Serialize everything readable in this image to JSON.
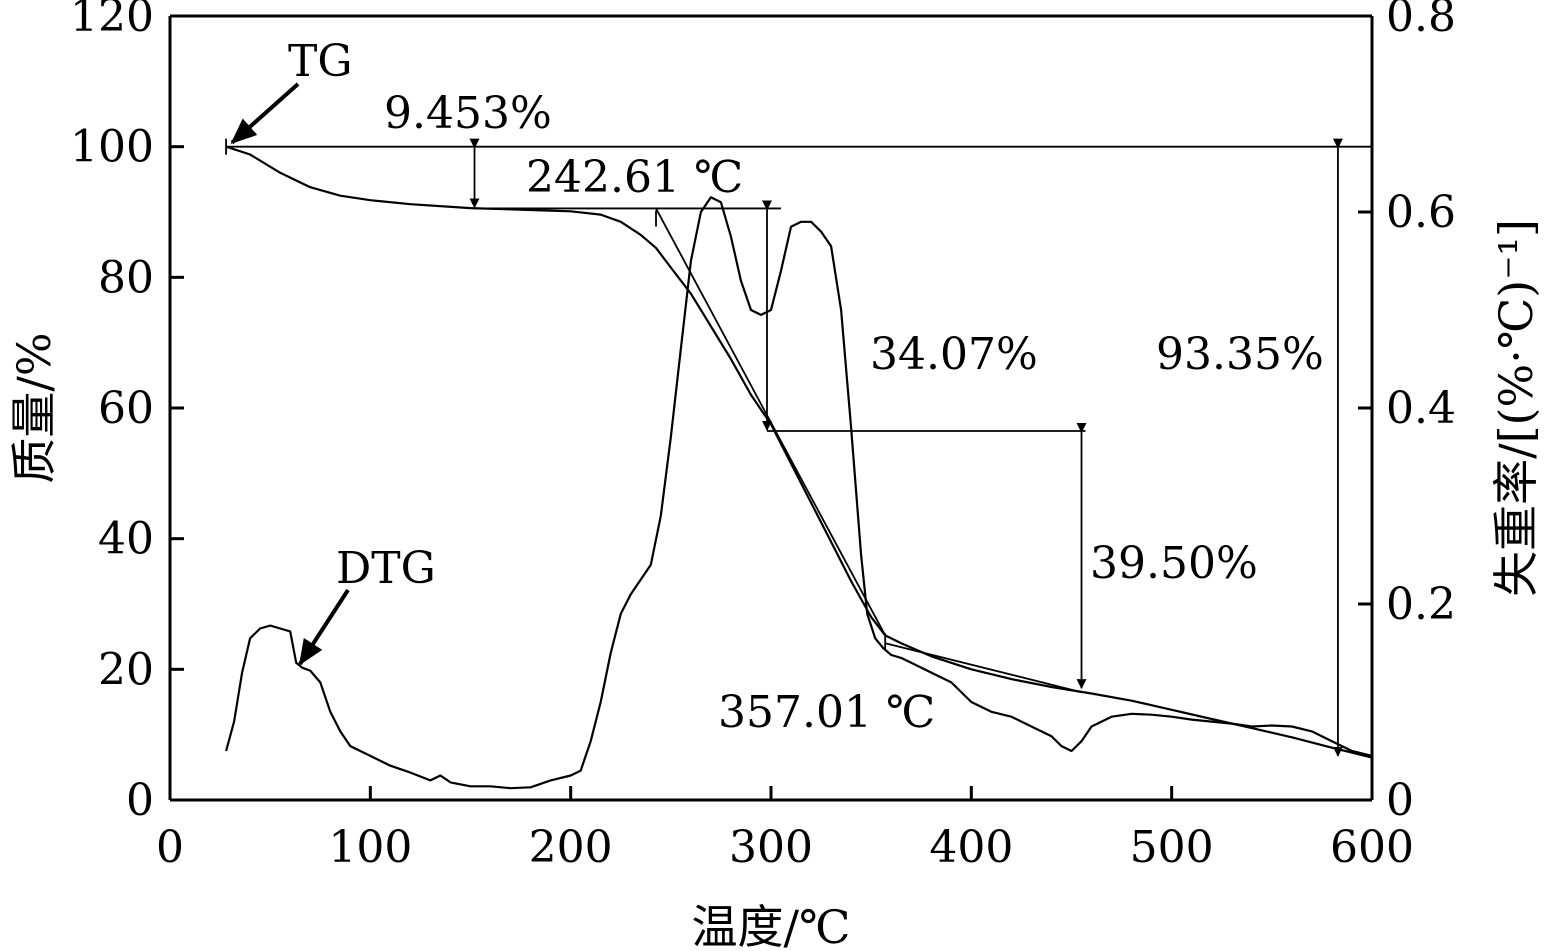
{
  "chart_data": {
    "type": "line",
    "xlabel": "温度/℃",
    "ylabel_left": "质量/%",
    "ylabel_right": "失重率/[(%·℃)⁻¹]",
    "xlim": [
      0,
      600
    ],
    "ylim_left": [
      0,
      120
    ],
    "ylim_right": [
      0,
      0.8
    ],
    "x_ticks": [
      "0",
      "100",
      "200",
      "300",
      "400",
      "500",
      "600"
    ],
    "y_left_ticks": [
      "0",
      "20",
      "40",
      "60",
      "80",
      "100",
      "120"
    ],
    "y_right_ticks": [
      "0",
      "0.2",
      "0.4",
      "0.6",
      "0.8"
    ],
    "grid": false,
    "series": [
      {
        "name": "TG",
        "axis": "left",
        "x": [
          28,
          40,
          55,
          70,
          85,
          100,
          120,
          150,
          180,
          200,
          215,
          225,
          235,
          242.6,
          250,
          260,
          270,
          280,
          290,
          300,
          310,
          320,
          330,
          340,
          350,
          357,
          365,
          380,
          400,
          420,
          440,
          460,
          480,
          500,
          520,
          540,
          560,
          580,
          600
        ],
        "values": [
          100,
          98.8,
          96,
          93.8,
          92.5,
          91.8,
          91.2,
          90.6,
          90.3,
          90.1,
          89.6,
          88.5,
          86.5,
          84.5,
          81.5,
          77.5,
          72.5,
          67.5,
          62,
          57.5,
          51.5,
          45.5,
          39.5,
          33.5,
          28,
          25.2,
          24,
          22,
          20,
          18.5,
          17.3,
          16.3,
          15.2,
          13.8,
          12.4,
          11,
          9.6,
          8,
          6.5
        ]
      },
      {
        "name": "DTG",
        "axis": "right",
        "x": [
          28,
          32,
          36,
          40,
          45,
          50,
          55,
          60,
          63,
          66,
          70,
          75,
          80,
          85,
          90,
          100,
          110,
          120,
          130,
          135,
          140,
          150,
          160,
          170,
          180,
          190,
          200,
          205,
          210,
          215,
          220,
          225,
          230,
          240,
          245,
          250,
          255,
          260,
          265,
          270,
          275,
          280,
          285,
          290,
          295,
          300,
          305,
          310,
          315,
          320,
          325,
          330,
          335,
          340,
          345,
          348,
          352,
          356,
          360,
          365,
          370,
          380,
          390,
          400,
          410,
          420,
          430,
          440,
          445,
          450,
          455,
          460,
          470,
          480,
          490,
          500,
          510,
          520,
          530,
          540,
          550,
          560,
          570,
          580,
          590,
          600
        ],
        "values": [
          0.05,
          0.08,
          0.13,
          0.165,
          0.175,
          0.178,
          0.175,
          0.172,
          0.14,
          0.135,
          0.132,
          0.12,
          0.09,
          0.07,
          0.055,
          0.045,
          0.035,
          0.028,
          0.02,
          0.025,
          0.018,
          0.014,
          0.014,
          0.012,
          0.013,
          0.02,
          0.025,
          0.03,
          0.06,
          0.1,
          0.15,
          0.19,
          0.21,
          0.24,
          0.29,
          0.37,
          0.46,
          0.55,
          0.6,
          0.615,
          0.61,
          0.575,
          0.53,
          0.5,
          0.495,
          0.5,
          0.54,
          0.585,
          0.59,
          0.59,
          0.58,
          0.565,
          0.5,
          0.38,
          0.25,
          0.19,
          0.165,
          0.155,
          0.148,
          0.145,
          0.14,
          0.13,
          0.12,
          0.1,
          0.09,
          0.085,
          0.075,
          0.065,
          0.055,
          0.05,
          0.06,
          0.075,
          0.085,
          0.088,
          0.087,
          0.085,
          0.082,
          0.08,
          0.078,
          0.075,
          0.076,
          0.075,
          0.07,
          0.06,
          0.05,
          0.045
        ]
      }
    ],
    "annotations": [
      {
        "text": "TG"
      },
      {
        "text": "DTG"
      },
      {
        "text": "9.453%"
      },
      {
        "text": "242.61 ℃"
      },
      {
        "text": "34.07%"
      },
      {
        "text": "39.50%"
      },
      {
        "text": "93.35%"
      },
      {
        "text": "357.01 ℃"
      }
    ],
    "markers": {
      "levels": [
        100,
        90.547,
        56.477,
        16.977
      ],
      "x_positions": [
        152,
        298,
        455,
        583
      ]
    }
  }
}
